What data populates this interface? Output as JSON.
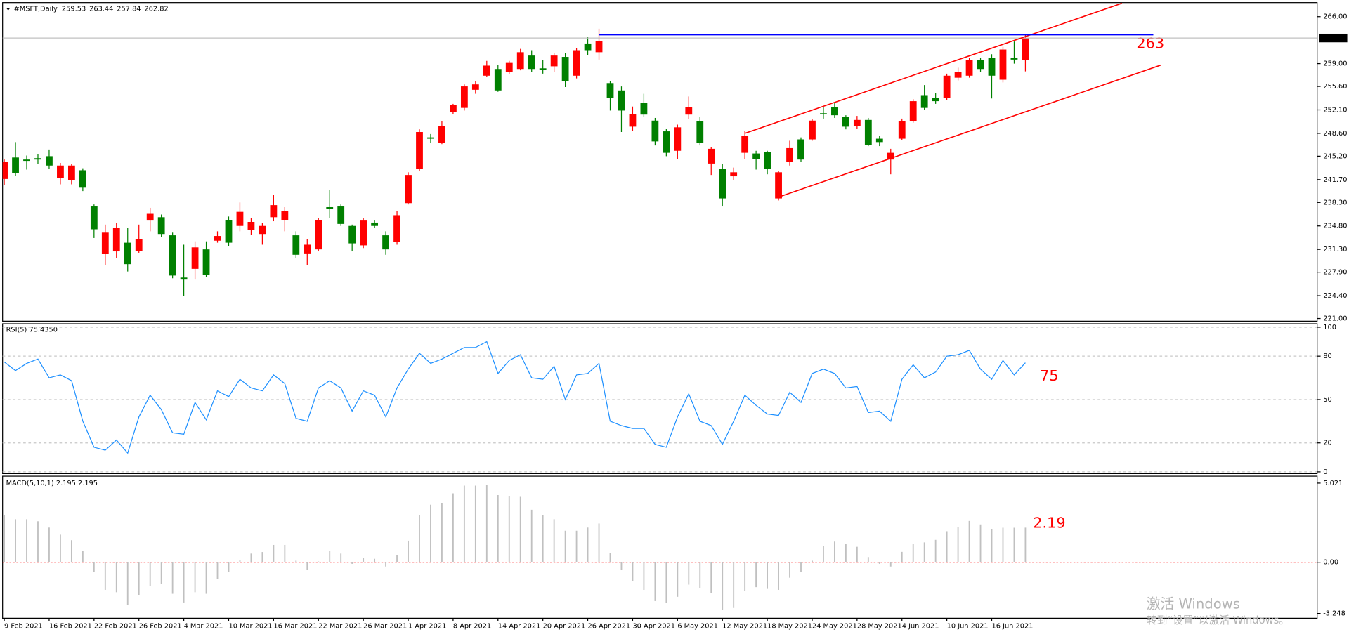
{
  "chart_data": [
    {
      "type": "candlestick",
      "title": "#MSFT,Daily",
      "annotation": "263",
      "up_color": "#ff0000",
      "down_color": "#008000",
      "last_price_color": "#000000",
      "xlim": [
        -0.15,
        117
      ],
      "ylim": [
        220.6,
        268.1
      ],
      "yticks": [
        {
          "value": 266,
          "label": "266.00"
        },
        {
          "value": 259,
          "label": "259.00"
        },
        {
          "value": 255.6,
          "label": "255.60"
        },
        {
          "value": 252.1,
          "label": "252.10"
        },
        {
          "value": 248.6,
          "label": "248.60"
        },
        {
          "value": 245.2,
          "label": "245.20"
        },
        {
          "value": 241.7,
          "label": "241.70"
        },
        {
          "value": 238.3,
          "label": "238.30"
        },
        {
          "value": 234.8,
          "label": "234.80"
        },
        {
          "value": 231.3,
          "label": "231.30"
        },
        {
          "value": 227.9,
          "label": "227.90"
        },
        {
          "value": 224.4,
          "label": "224.40"
        },
        {
          "value": 221,
          "label": "221.00"
        }
      ],
      "categories": [
        "9 Feb 2021",
        null,
        null,
        null,
        "16 Feb 2021",
        null,
        null,
        null,
        "22 Feb 2021",
        null,
        null,
        null,
        "26 Feb 2021",
        null,
        null,
        null,
        "4 Mar 2021",
        null,
        null,
        null,
        "10 Mar 2021",
        null,
        null,
        null,
        "16 Mar 2021",
        null,
        null,
        null,
        "22 Mar 2021",
        null,
        null,
        null,
        "26 Mar 2021",
        null,
        null,
        null,
        "1 Apr 2021",
        null,
        null,
        null,
        "8 Apr 2021",
        null,
        null,
        null,
        "14 Apr 2021",
        null,
        null,
        null,
        "20 Apr 2021",
        null,
        null,
        null,
        "26 Apr 2021",
        null,
        null,
        null,
        "30 Apr 2021",
        null,
        null,
        null,
        "6 May 2021",
        null,
        null,
        null,
        "12 May 2021",
        null,
        null,
        null,
        "18 May 2021",
        null,
        null,
        null,
        "24 May 2021",
        null,
        null,
        null,
        "28 May 2021",
        null,
        null,
        null,
        "4 Jun 2021",
        null,
        null,
        null,
        "10 Jun 2021",
        null,
        null,
        null,
        "16 Jun 2021",
        null,
        null,
        null
      ],
      "open": [
        241.8,
        245.0,
        244.7,
        244.9,
        245.2,
        241.9,
        241.6,
        243.1,
        237.7,
        230.6,
        231.0,
        232.3,
        231.1,
        235.6,
        236.1,
        233.4,
        227.1,
        228.4,
        231.3,
        232.6,
        235.7,
        234.8,
        234.2,
        233.6,
        236.1,
        235.7,
        233.4,
        230.7,
        231.3,
        237.6,
        237.7,
        234.8,
        231.9,
        235.3,
        233.4,
        232.4,
        238.2,
        243.3,
        248.0,
        247.2,
        251.8,
        252.4,
        255.1,
        257.2,
        258.2,
        257.8,
        258.2,
        260.2,
        258.3,
        258.6,
        260.0,
        257.2,
        262.0,
        260.7,
        256.1,
        255.0,
        249.6,
        253.1,
        250.5,
        248.9,
        246.0,
        251.4,
        250.4,
        244.1,
        243.3,
        242.2,
        245.7,
        245.6,
        245.8,
        238.9,
        244.3,
        247.7,
        247.7,
        251.6,
        252.5,
        251.0,
        249.7,
        250.6,
        247.8,
        244.7,
        247.8,
        250.4,
        254.3,
        253.9,
        253.9,
        256.9,
        257.2,
        259.5,
        259.8,
        256.6,
        259.8,
        259.53
      ],
      "high": [
        244.7,
        247.3,
        245.3,
        245.5,
        246.2,
        244.2,
        244.0,
        243.4,
        238.0,
        235.0,
        235.2,
        234.5,
        235.0,
        237.5,
        236.5,
        233.8,
        232.0,
        232.5,
        232.5,
        234.0,
        236.2,
        238.3,
        236.0,
        235.2,
        239.4,
        237.6,
        234.0,
        232.8,
        236.0,
        240.2,
        238.0,
        235.0,
        236.0,
        235.6,
        234.0,
        237.0,
        242.8,
        249.2,
        248.5,
        250.4,
        253.0,
        255.9,
        256.4,
        259.4,
        258.8,
        259.4,
        261.2,
        261.0,
        259.5,
        260.6,
        260.6,
        261.3,
        263.0,
        264.2,
        256.4,
        255.6,
        252.6,
        254.5,
        250.9,
        249.3,
        249.9,
        254.1,
        251.1,
        246.5,
        244.0,
        243.5,
        249.0,
        246.0,
        246.0,
        243.0,
        247.5,
        248.0,
        250.7,
        252.5,
        253.2,
        251.3,
        251.2,
        250.9,
        248.2,
        246.3,
        250.8,
        253.7,
        255.8,
        254.6,
        257.5,
        258.4,
        259.9,
        259.9,
        260.4,
        261.5,
        262.3,
        263.44
      ],
      "low": [
        240.9,
        242.2,
        243.2,
        244.0,
        243.3,
        241.0,
        241.0,
        240.0,
        233.0,
        229.0,
        230.0,
        228.0,
        230.8,
        234.0,
        233.2,
        227.0,
        224.3,
        226.8,
        227.2,
        232.3,
        231.8,
        234.0,
        233.5,
        232.0,
        235.5,
        234.0,
        230.0,
        229.0,
        231.0,
        236.0,
        234.8,
        231.0,
        231.5,
        234.5,
        230.5,
        232.0,
        238.0,
        243.0,
        247.2,
        247.0,
        251.5,
        252.0,
        254.5,
        257.0,
        254.8,
        257.4,
        258.0,
        257.8,
        257.5,
        257.8,
        255.5,
        256.8,
        260.3,
        259.6,
        252.0,
        248.8,
        249.0,
        251.0,
        246.8,
        245.2,
        244.8,
        250.7,
        246.8,
        242.4,
        237.7,
        241.6,
        244.8,
        243.2,
        242.5,
        238.6,
        243.8,
        244.4,
        247.5,
        250.8,
        250.9,
        249.2,
        249.3,
        246.7,
        246.7,
        242.5,
        247.6,
        250.2,
        252.1,
        253.0,
        253.6,
        256.5,
        256.9,
        257.8,
        253.8,
        256.2,
        259.0,
        257.84
      ],
      "close": [
        244.3,
        242.7,
        244.5,
        244.7,
        243.8,
        243.8,
        243.8,
        240.5,
        234.3,
        233.8,
        234.5,
        229.1,
        232.8,
        236.6,
        233.6,
        227.4,
        226.8,
        231.6,
        227.5,
        233.3,
        232.3,
        236.9,
        235.4,
        234.8,
        237.9,
        237.0,
        230.5,
        232.0,
        235.7,
        237.3,
        235.1,
        232.2,
        235.6,
        234.8,
        231.3,
        236.4,
        242.4,
        248.8,
        247.8,
        249.7,
        252.8,
        255.6,
        255.9,
        258.7,
        255.0,
        259.1,
        260.7,
        258.2,
        258.1,
        260.2,
        256.4,
        261.0,
        261.0,
        262.4,
        253.9,
        252.0,
        251.5,
        251.4,
        247.4,
        245.7,
        249.5,
        252.5,
        247.2,
        246.3,
        238.9,
        242.8,
        248.2,
        244.8,
        243.3,
        242.8,
        246.4,
        244.7,
        250.5,
        251.5,
        251.3,
        249.6,
        250.6,
        246.9,
        247.3,
        245.7,
        250.4,
        253.4,
        252.4,
        253.4,
        257.2,
        257.8,
        259.5,
        258.2,
        257.2,
        261.1,
        259.6,
        262.82
      ],
      "overlays": [
        {
          "color": "#ff0000",
          "x": [
            66,
            99.6
          ],
          "values": [
            248.6,
            268.0
          ]
        },
        {
          "color": "#ff0000",
          "x": [
            69,
            103.1
          ],
          "values": [
            239.1,
            258.8
          ]
        },
        {
          "color": "#0000ff",
          "x": [
            53,
            102.4
          ],
          "values": [
            263.3,
            263.3
          ]
        }
      ]
    },
    {
      "type": "line",
      "title": "RSI(5) 75.4350",
      "annotation": "75",
      "color": "#1e90ff",
      "grid": true,
      "ylim": [
        -1.2,
        102.4
      ],
      "yticks": [
        100,
        80,
        50,
        20,
        0
      ],
      "values": [
        76,
        70,
        75,
        78,
        65,
        67,
        63,
        35,
        17,
        15,
        22,
        13,
        38,
        53,
        43,
        27,
        26,
        48,
        36,
        56,
        52,
        64,
        58,
        56,
        67,
        61,
        37,
        35,
        58,
        63,
        58,
        42,
        56,
        53,
        38,
        58,
        71,
        82,
        75,
        78,
        82,
        86,
        86,
        90,
        68,
        77,
        81,
        65,
        64,
        73,
        50,
        67,
        68,
        75,
        35,
        32,
        30,
        30,
        19,
        17,
        38,
        54,
        35,
        32,
        19,
        35,
        53,
        46,
        40,
        39,
        55,
        48,
        68,
        71,
        68,
        58,
        59,
        41,
        42,
        35,
        64,
        74,
        65,
        69,
        80,
        81,
        84,
        71,
        64,
        77,
        67,
        75.435
      ]
    },
    {
      "type": "bar",
      "title": "MACD(5,10,1) 2.195 2.195",
      "annotation": "2.19",
      "color": "#c0c0c0",
      "zero_line_color": "#ff0000",
      "ylim": [
        -3.55,
        5.46
      ],
      "yticks": [
        {
          "value": 5.021,
          "label": "5.021"
        },
        {
          "value": 0,
          "label": "0.00"
        },
        {
          "value": -3.248,
          "label": "-3.248"
        }
      ],
      "values": [
        3.0,
        2.73,
        2.73,
        2.6,
        2.2,
        1.75,
        1.4,
        0.7,
        -0.6,
        -1.75,
        -1.9,
        -2.7,
        -2.1,
        -1.5,
        -1.35,
        -2.0,
        -2.55,
        -1.9,
        -2.0,
        -1.05,
        -0.6,
        0.15,
        0.55,
        0.65,
        1.1,
        1.1,
        0.1,
        -0.5,
        0.05,
        0.7,
        0.55,
        -0.1,
        0.27,
        0.22,
        -0.27,
        0.45,
        1.37,
        3.0,
        3.65,
        3.77,
        4.37,
        4.86,
        4.86,
        4.92,
        4.26,
        4.2,
        4.15,
        3.33,
        3.0,
        2.73,
        2.0,
        2.0,
        2.2,
        2.46,
        0.6,
        -0.5,
        -1.2,
        -1.75,
        -2.46,
        -2.57,
        -2.19,
        -1.42,
        -1.64,
        -1.97,
        -3.0,
        -2.9,
        -1.8,
        -1.58,
        -1.69,
        -1.75,
        -0.98,
        -0.6,
        0.1,
        1.04,
        1.31,
        1.15,
        0.98,
        0.33,
        -0.1,
        -0.27,
        0.66,
        1.15,
        1.26,
        1.42,
        1.97,
        2.24,
        2.62,
        2.4,
        2.08,
        2.19,
        2.19,
        2.195
      ]
    }
  ],
  "watermark": {
    "line1": "激活 Windows",
    "line2": "转到“设置”以激活 Windows。"
  }
}
